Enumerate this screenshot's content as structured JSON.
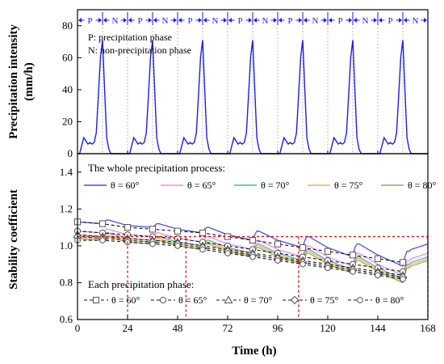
{
  "chart_data": [
    {
      "type": "line",
      "panel": "top",
      "ylabel_line1": "Precipitation intensity",
      "ylabel_line2": "(mm/h)",
      "ylim": [
        0,
        90
      ],
      "yticks": [
        0,
        20,
        40,
        60,
        80
      ],
      "xlim": [
        0,
        168
      ],
      "grid": "vertical dotted lines every 12 h",
      "phase_markers": [
        "P",
        "N",
        "P",
        "N",
        "P",
        "N",
        "P",
        "N",
        "P",
        "N",
        "P",
        "N",
        "P",
        "N"
      ],
      "legend": {
        "p_text": "P: precipitation phase",
        "n_text": "N: non-precipitation phase"
      },
      "series": [
        {
          "color": "#1a1aff",
          "x": [
            0,
            1,
            2,
            3,
            4,
            5,
            6,
            7,
            8,
            9,
            10,
            11,
            12,
            13,
            14,
            15,
            16,
            17,
            24,
            25,
            26,
            27,
            28,
            29,
            30,
            31,
            32,
            33,
            34,
            35,
            36,
            37,
            38,
            39,
            40,
            41,
            48,
            49,
            50,
            51,
            52,
            53,
            54,
            55,
            56,
            57,
            58,
            59,
            60,
            61,
            62,
            63,
            64,
            65,
            72,
            73,
            74,
            75,
            76,
            77,
            78,
            79,
            80,
            81,
            82,
            83,
            84,
            85,
            86,
            87,
            88,
            89,
            96,
            97,
            98,
            99,
            100,
            101,
            102,
            103,
            104,
            105,
            106,
            107,
            108,
            109,
            110,
            111,
            112,
            113,
            120,
            121,
            122,
            123,
            124,
            125,
            126,
            127,
            128,
            129,
            130,
            131,
            132,
            133,
            134,
            135,
            136,
            137,
            144,
            145,
            146,
            147,
            148,
            149,
            150,
            151,
            152,
            153,
            154,
            155,
            156,
            157,
            158,
            159,
            160,
            161,
            168
          ],
          "values": [
            0,
            0,
            5,
            10,
            8,
            6,
            7,
            6,
            7,
            13,
            36,
            60,
            71,
            40,
            10,
            3,
            0,
            0,
            0,
            0,
            5,
            10,
            8,
            6,
            7,
            6,
            7,
            13,
            36,
            60,
            71,
            40,
            10,
            3,
            0,
            0,
            0,
            0,
            5,
            10,
            8,
            6,
            7,
            6,
            7,
            13,
            36,
            60,
            71,
            40,
            10,
            3,
            0,
            0,
            0,
            0,
            5,
            10,
            8,
            6,
            7,
            6,
            7,
            13,
            36,
            60,
            71,
            40,
            10,
            3,
            0,
            0,
            0,
            0,
            5,
            10,
            8,
            6,
            7,
            6,
            7,
            13,
            36,
            60,
            71,
            40,
            10,
            3,
            0,
            0,
            0,
            0,
            5,
            10,
            8,
            6,
            7,
            6,
            7,
            13,
            36,
            60,
            71,
            40,
            10,
            3,
            0,
            0,
            0,
            0,
            5,
            10,
            8,
            6,
            7,
            6,
            7,
            13,
            36,
            60,
            71,
            40,
            10,
            3,
            0,
            0,
            0
          ]
        }
      ]
    },
    {
      "type": "line",
      "panel": "bottom",
      "ylabel": "Stability coefficient",
      "xlabel": "Time (h)",
      "ylim": [
        0.6,
        1.5
      ],
      "yticks": [
        0.6,
        0.8,
        1.0,
        1.2,
        1.4
      ],
      "xlim": [
        0,
        168
      ],
      "xticks": [
        0,
        24,
        48,
        72,
        96,
        120,
        144,
        168
      ],
      "reference_line": {
        "y": 1.05,
        "color": "#ff0000",
        "style": "dotted"
      },
      "crossing_times": [
        24,
        52,
        106
      ],
      "legend_whole_title": "The whole precipitation process:",
      "legend_phase_title": "Each precipitation phase:",
      "series_whole": [
        {
          "name": "θ = 60°",
          "color": "#4a4aff",
          "x": [
            0,
            12,
            13,
            14,
            15,
            24,
            36,
            37,
            38,
            39,
            48,
            60,
            61,
            62,
            63,
            72,
            84,
            85,
            86,
            87,
            96,
            108,
            109,
            110,
            111,
            120,
            132,
            133,
            134,
            135,
            144,
            156,
            157,
            158,
            159,
            160,
            168
          ],
          "values": [
            1.13,
            1.12,
            1.13,
            1.14,
            1.14,
            1.11,
            1.1,
            1.11,
            1.12,
            1.12,
            1.09,
            1.07,
            1.09,
            1.1,
            1.1,
            1.06,
            1.03,
            1.06,
            1.08,
            1.08,
            1.03,
            0.99,
            1.03,
            1.05,
            1.05,
            0.99,
            0.94,
            0.99,
            1.01,
            1.01,
            0.95,
            0.89,
            0.94,
            0.97,
            0.97,
            0.98,
            1.01
          ]
        },
        {
          "name": "θ = 65°",
          "color": "#ff80ff",
          "x": [
            0,
            12,
            13,
            14,
            15,
            24,
            36,
            37,
            38,
            39,
            48,
            60,
            61,
            62,
            63,
            72,
            84,
            85,
            86,
            87,
            96,
            108,
            109,
            110,
            111,
            120,
            132,
            133,
            134,
            135,
            144,
            156,
            157,
            158,
            159,
            160,
            168
          ],
          "values": [
            1.08,
            1.07,
            1.08,
            1.09,
            1.09,
            1.06,
            1.05,
            1.06,
            1.07,
            1.07,
            1.04,
            1.02,
            1.04,
            1.05,
            1.05,
            1.01,
            0.98,
            1.01,
            1.03,
            1.03,
            0.98,
            0.94,
            0.98,
            1.0,
            1.0,
            0.94,
            0.89,
            0.94,
            0.96,
            0.96,
            0.9,
            0.84,
            0.89,
            0.92,
            0.92,
            0.93,
            0.96
          ]
        },
        {
          "name": "θ = 70°",
          "color": "#3fb8b8",
          "x": [
            0,
            12,
            13,
            14,
            15,
            24,
            36,
            37,
            38,
            39,
            48,
            60,
            61,
            62,
            63,
            72,
            84,
            85,
            86,
            87,
            96,
            108,
            109,
            110,
            111,
            120,
            132,
            133,
            134,
            135,
            144,
            156,
            157,
            158,
            159,
            160,
            168
          ],
          "values": [
            1.06,
            1.05,
            1.06,
            1.07,
            1.07,
            1.04,
            1.03,
            1.04,
            1.05,
            1.05,
            1.02,
            1.0,
            1.02,
            1.03,
            1.03,
            0.99,
            0.96,
            0.99,
            1.01,
            1.01,
            0.96,
            0.92,
            0.96,
            0.98,
            0.98,
            0.92,
            0.87,
            0.92,
            0.94,
            0.94,
            0.88,
            0.82,
            0.87,
            0.9,
            0.9,
            0.91,
            0.94
          ]
        },
        {
          "name": "θ = 75°",
          "color": "#ffb04d",
          "x": [
            0,
            12,
            13,
            14,
            15,
            24,
            36,
            37,
            38,
            39,
            48,
            60,
            61,
            62,
            63,
            72,
            84,
            85,
            86,
            87,
            96,
            108,
            109,
            110,
            111,
            120,
            132,
            133,
            134,
            135,
            144,
            156,
            157,
            158,
            159,
            160,
            168
          ],
          "values": [
            1.05,
            1.04,
            1.05,
            1.06,
            1.06,
            1.03,
            1.02,
            1.03,
            1.04,
            1.04,
            1.01,
            0.99,
            1.01,
            1.02,
            1.02,
            0.98,
            0.95,
            0.98,
            1.0,
            1.0,
            0.95,
            0.91,
            0.95,
            0.97,
            0.97,
            0.91,
            0.86,
            0.91,
            0.93,
            0.93,
            0.87,
            0.81,
            0.86,
            0.89,
            0.89,
            0.9,
            0.93
          ]
        },
        {
          "name": "θ = 80°",
          "color": "#a8a060",
          "x": [
            0,
            12,
            13,
            14,
            15,
            24,
            36,
            37,
            38,
            39,
            48,
            60,
            61,
            62,
            63,
            72,
            84,
            85,
            86,
            87,
            96,
            108,
            109,
            110,
            111,
            120,
            132,
            133,
            134,
            135,
            144,
            156,
            157,
            158,
            159,
            160,
            168
          ],
          "values": [
            1.04,
            1.03,
            1.04,
            1.05,
            1.05,
            1.02,
            1.01,
            1.02,
            1.03,
            1.03,
            1.0,
            0.98,
            1.0,
            1.01,
            1.01,
            0.97,
            0.94,
            0.97,
            0.99,
            0.99,
            0.94,
            0.9,
            0.94,
            0.96,
            0.96,
            0.9,
            0.85,
            0.9,
            0.92,
            0.92,
            0.86,
            0.8,
            0.85,
            0.88,
            0.88,
            0.89,
            0.92
          ]
        }
      ],
      "series_phase": [
        {
          "name": "θ = 60°",
          "marker": "square",
          "x": [
            0,
            12,
            24,
            36,
            48,
            60,
            72,
            84,
            96,
            108,
            120,
            132,
            144,
            156
          ],
          "values": [
            1.13,
            1.12,
            1.1,
            1.09,
            1.08,
            1.07,
            1.05,
            1.03,
            1.01,
            0.99,
            0.97,
            0.95,
            0.93,
            0.91
          ]
        },
        {
          "name": "θ = 65°",
          "marker": "circle",
          "x": [
            0,
            12,
            24,
            36,
            48,
            60,
            72,
            84,
            96,
            108,
            120,
            132,
            144,
            156
          ],
          "values": [
            1.08,
            1.07,
            1.06,
            1.05,
            1.04,
            1.02,
            1.0,
            0.98,
            0.96,
            0.94,
            0.92,
            0.9,
            0.88,
            0.86
          ]
        },
        {
          "name": "θ = 70°",
          "marker": "triangle",
          "x": [
            0,
            12,
            24,
            36,
            48,
            60,
            72,
            84,
            96,
            108,
            120,
            132,
            144,
            156
          ],
          "values": [
            1.06,
            1.05,
            1.04,
            1.03,
            1.02,
            1.0,
            0.98,
            0.96,
            0.94,
            0.92,
            0.9,
            0.88,
            0.86,
            0.84
          ]
        },
        {
          "name": "θ = 75°",
          "marker": "diamond",
          "x": [
            0,
            12,
            24,
            36,
            48,
            60,
            72,
            84,
            96,
            108,
            120,
            132,
            144,
            156
          ],
          "values": [
            1.05,
            1.04,
            1.03,
            1.02,
            1.01,
            0.99,
            0.97,
            0.95,
            0.93,
            0.91,
            0.89,
            0.87,
            0.85,
            0.83
          ]
        },
        {
          "name": "θ = 80°",
          "marker": "hexagon",
          "x": [
            0,
            12,
            24,
            36,
            48,
            60,
            72,
            84,
            96,
            108,
            120,
            132,
            144,
            156
          ],
          "values": [
            1.03,
            1.03,
            1.02,
            1.01,
            1.0,
            0.98,
            0.96,
            0.94,
            0.92,
            0.9,
            0.88,
            0.86,
            0.84,
            0.82
          ]
        }
      ]
    }
  ]
}
